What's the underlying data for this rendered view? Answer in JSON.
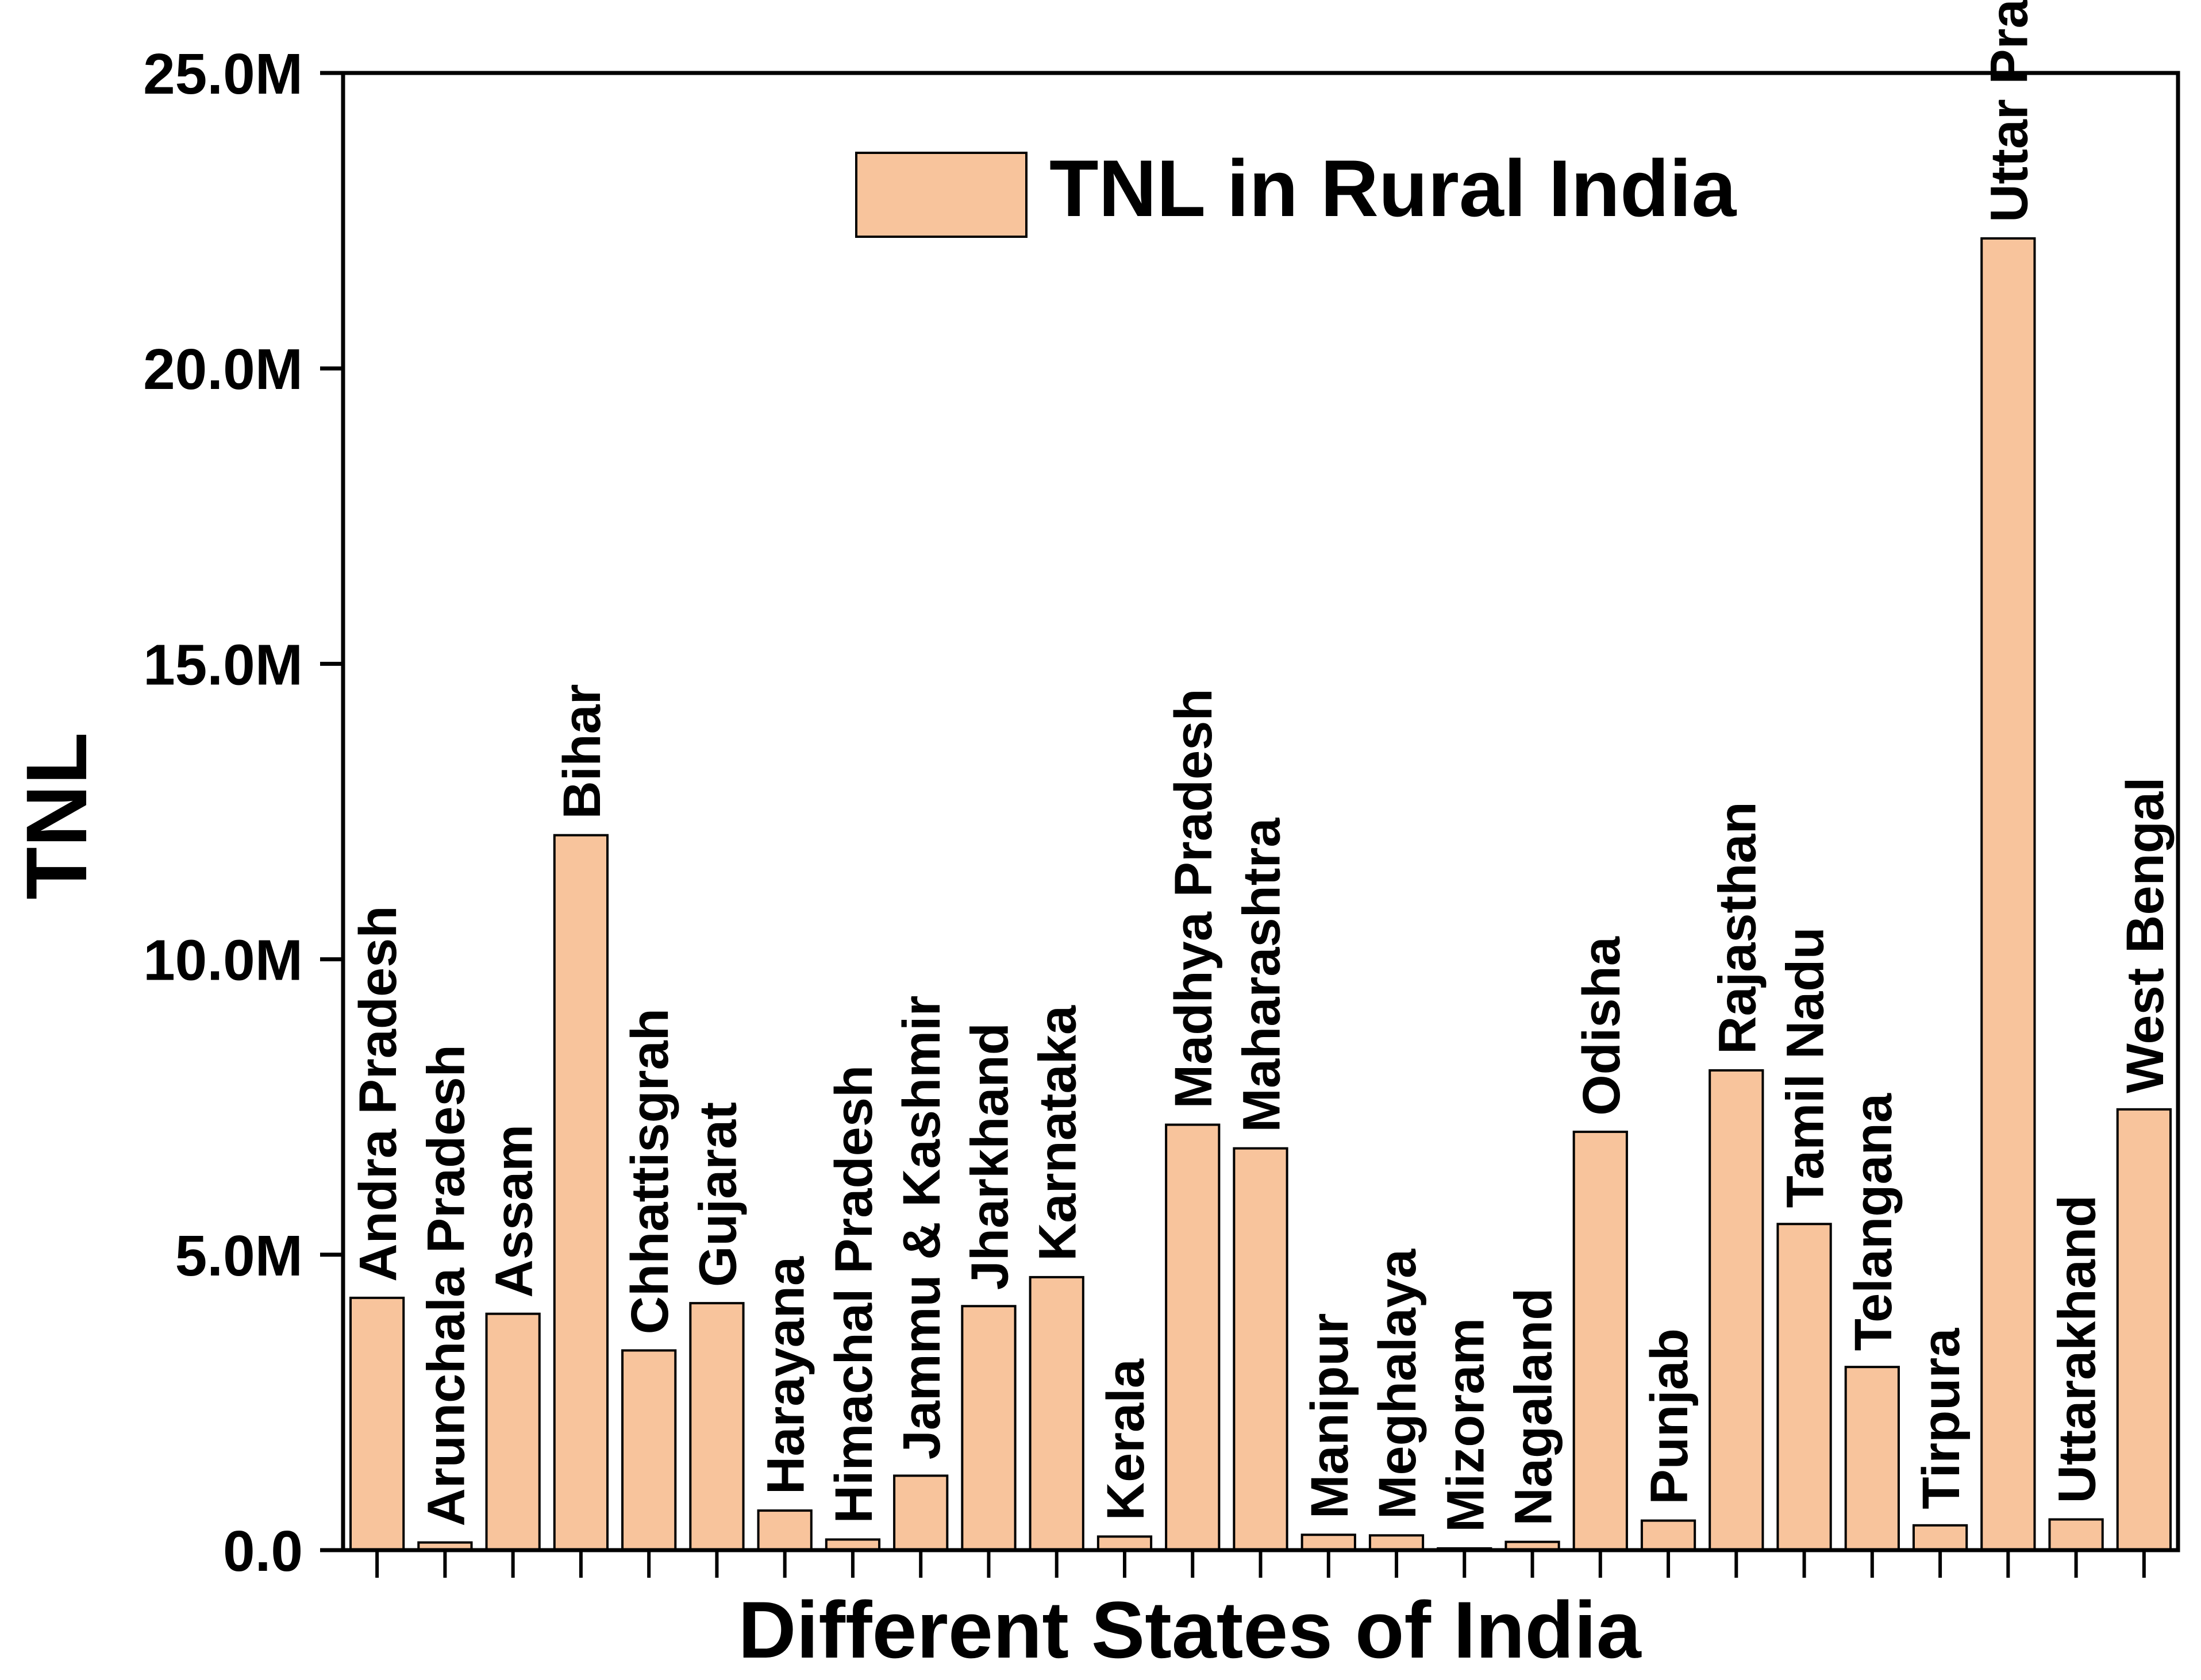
{
  "chart_data": {
    "type": "bar",
    "title": "",
    "xlabel": "Different States of India",
    "ylabel": "TNL",
    "ylim": [
      0,
      25000000
    ],
    "yticks": [
      0,
      5000000,
      10000000,
      15000000,
      20000000,
      25000000
    ],
    "ytick_labels": [
      "0.0",
      "5.0M",
      "10.0M",
      "15.0M",
      "20.0M",
      "25.0M"
    ],
    "legend": {
      "label": "TNL in Rural India",
      "position": "top-center"
    },
    "bar_color": "#F8C49C",
    "grid": false,
    "categories": [
      "Andra Pradesh",
      "Arunchala Pradesh",
      "Assam",
      "Bihar",
      "Chhattisgrah",
      "Gujarat",
      "Harayana",
      "Himachal Pradesh",
      "Jammu & Kashmir",
      "Jharkhand",
      "Karnataka",
      "Kerala",
      "Madhya Pradesh",
      "Maharashtra",
      "Manipur",
      "Meghalaya",
      "Mizoram",
      "Nagaland",
      "Odisha",
      "Punjab",
      "Rajasthan",
      "Tamil Nadu",
      "Telangana",
      "Tirpura",
      "Uttar Pradesh",
      "Uttarakhand",
      "West Bengal"
    ],
    "values": [
      4270000,
      130000,
      4000000,
      12100000,
      3380000,
      4180000,
      670000,
      180000,
      1260000,
      4130000,
      4620000,
      230000,
      7200000,
      6800000,
      260000,
      250000,
      30000,
      140000,
      7080000,
      500000,
      8120000,
      5520000,
      3100000,
      420000,
      22200000,
      520000,
      7460000
    ]
  }
}
